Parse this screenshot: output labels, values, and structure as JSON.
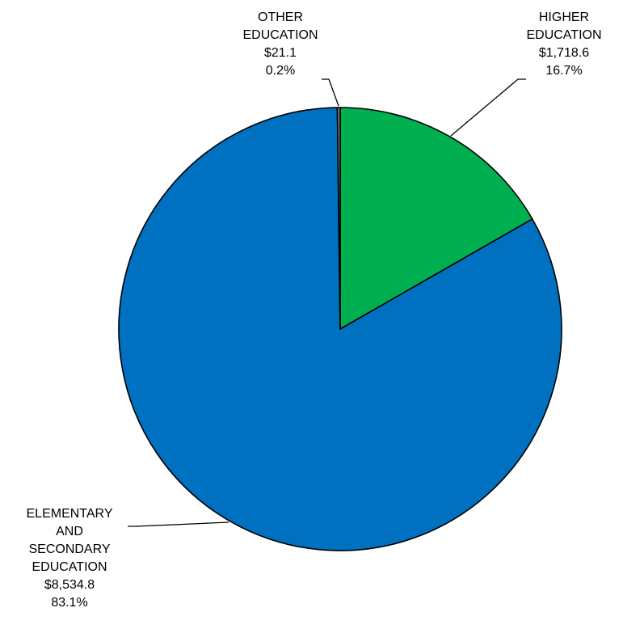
{
  "chart_data": {
    "type": "pie",
    "slices": [
      {
        "label_lines": [
          "HIGHER",
          "EDUCATION"
        ],
        "amount": "$1,718.6",
        "percent_label": "16.7%",
        "value": 1718.6,
        "color": "#00B050"
      },
      {
        "label_lines": [
          "ELEMENTARY",
          "AND",
          "SECONDARY",
          "EDUCATION"
        ],
        "amount": "$8,534.8",
        "percent_label": "83.1%",
        "value": 8534.8,
        "color": "#0070C0"
      },
      {
        "label_lines": [
          "OTHER",
          "EDUCATION"
        ],
        "amount": "$21.1",
        "percent_label": "0.2%",
        "value": 21.1,
        "color": "#7F7F7F"
      }
    ],
    "start_angle": "12 o'clock",
    "direction": "clockwise",
    "slice_border_color": "#000000",
    "legend": "none"
  }
}
